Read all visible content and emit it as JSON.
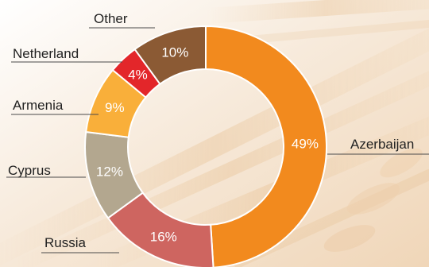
{
  "chart_data": {
    "type": "pie",
    "variant": "donut",
    "title": "",
    "start_angle_deg": 0,
    "direction": "clockwise",
    "slices": [
      {
        "label": "Azerbaijan",
        "value": 49,
        "value_label": "49%",
        "color": "#F28A1E"
      },
      {
        "label": "Russia",
        "value": 16,
        "value_label": "16%",
        "color": "#CE6560"
      },
      {
        "label": "Cyprus",
        "value": 12,
        "value_label": "12%",
        "color": "#B3A78F"
      },
      {
        "label": "Armenia",
        "value": 9,
        "value_label": "9%",
        "color": "#F9AF3A"
      },
      {
        "label": "Netherland",
        "value": 4,
        "value_label": "4%",
        "color": "#E3262A"
      },
      {
        "label": "Other",
        "value": 10,
        "value_label": "10%",
        "color": "#8B5A34"
      }
    ],
    "background": "wheat-photo"
  },
  "colors": {
    "leader_line": "#4A4A4A",
    "label_text": "#222222",
    "value_text": "#FFFFFF",
    "slice_border": "#FFFFFF"
  }
}
